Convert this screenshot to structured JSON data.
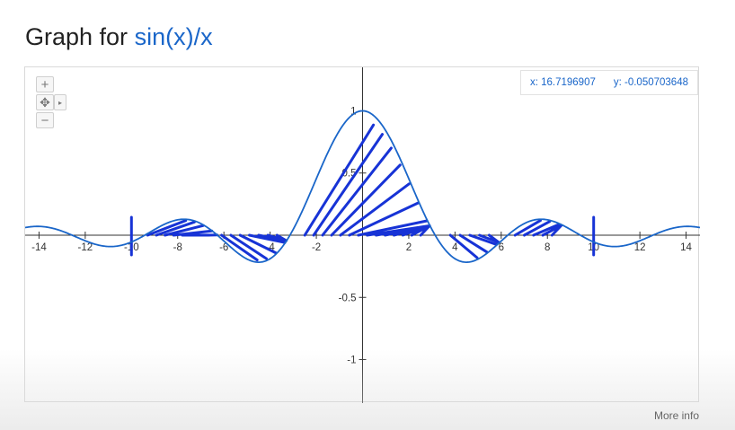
{
  "header": {
    "prefix": "Graph for",
    "expression": "sin(x)/x"
  },
  "coords": {
    "x_label": "x: 16.7196907",
    "y_label": "y: -0.050703648"
  },
  "controls": {
    "zoom_in": "+",
    "pan": "✥",
    "zoom_out": "−",
    "expand": "▸"
  },
  "footer": {
    "more_info": "More info"
  },
  "colors": {
    "curve": "#1a66c9",
    "scribble": "#1733d6",
    "axis": "#333333",
    "title_accent": "#1a66c9"
  },
  "chart_data": {
    "type": "line",
    "function": "sin(x)/x",
    "xlim": [
      -14.6,
      14.6
    ],
    "ylim": [
      -1.35,
      1.35
    ],
    "x_ticks": [
      -14,
      -12,
      -10,
      -8,
      -6,
      -4,
      -2,
      2,
      4,
      6,
      8,
      10,
      12,
      14
    ],
    "y_ticks": [
      1,
      0.5,
      -0.5,
      -1
    ],
    "x_tick_labels": [
      "-14",
      "-12",
      "-10",
      "-8",
      "-6",
      "-4",
      "-2",
      "2",
      "4",
      "6",
      "8",
      "10",
      "12",
      "14"
    ],
    "y_tick_labels": [
      "1",
      "0.5",
      "-0.5",
      "-1"
    ],
    "cursor": {
      "x": 16.7196907,
      "y": -0.050703648
    },
    "annotation_marks": [
      {
        "type": "shaded-region",
        "x_range": [
          -9.3,
          -6.3
        ]
      },
      {
        "type": "shaded-region",
        "x_range": [
          -6.1,
          -3.3
        ]
      },
      {
        "type": "shaded-region",
        "x_range": [
          -2.5,
          2.9
        ]
      },
      {
        "type": "shaded-region",
        "x_range": [
          3.8,
          5.9
        ]
      },
      {
        "type": "shaded-region",
        "x_range": [
          6.6,
          8.6
        ]
      },
      {
        "type": "vertical-marker",
        "x": -10
      },
      {
        "type": "vertical-marker",
        "x": 10
      }
    ]
  }
}
